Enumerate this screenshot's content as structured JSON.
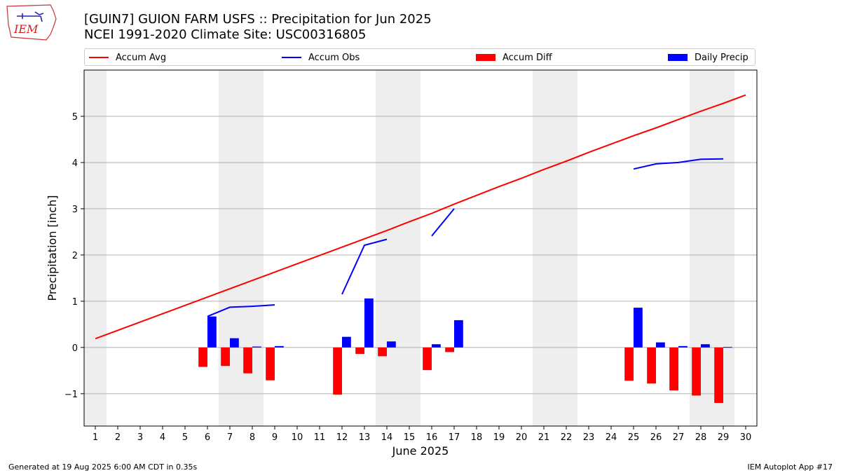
{
  "header": {
    "title_line1": "[GUIN7] GUION FARM USFS :: Precipitation for Jun 2025",
    "title_line2": "NCEI 1991-2020 Climate Site: USC00316805",
    "logo_text": "IEM"
  },
  "legend": {
    "accum_avg": "Accum Avg",
    "accum_obs": "Accum Obs",
    "accum_diff": "Accum Diff",
    "daily_precip": "Daily Precip"
  },
  "footer": {
    "generated": "Generated at 19 Aug 2025 6:00 AM CDT in 0.35s",
    "app": "IEM Autoplot App #17"
  },
  "colors": {
    "avg": "#ff0000",
    "obs": "#0000ff",
    "diff": "#ff0000",
    "daily": "#0000ff",
    "weekend": "#eeeeee",
    "grid": "#b0b0b0"
  },
  "chart_data": {
    "type": "bar",
    "xlabel": "June 2025",
    "ylabel": "Precipitation [inch]",
    "xlim": [
      0.5,
      30.5
    ],
    "ylim": [
      -1.7,
      6.0
    ],
    "x_ticks": [
      1,
      2,
      3,
      4,
      5,
      6,
      7,
      8,
      9,
      10,
      11,
      12,
      13,
      14,
      15,
      16,
      17,
      18,
      19,
      20,
      21,
      22,
      23,
      24,
      25,
      26,
      27,
      28,
      29,
      30
    ],
    "y_ticks": [
      -1,
      0,
      1,
      2,
      3,
      4,
      5
    ],
    "grid": "horizontal",
    "legend_placement": "top",
    "weekend_days": [
      1,
      7,
      8,
      14,
      15,
      21,
      22,
      28,
      29
    ],
    "accum_avg": {
      "name": "Accum Avg",
      "x": [
        1,
        2,
        3,
        4,
        5,
        6,
        7,
        8,
        9,
        10,
        11,
        12,
        13,
        14,
        15,
        16,
        17,
        18,
        19,
        20,
        21,
        22,
        23,
        24,
        25,
        26,
        27,
        28,
        29,
        30
      ],
      "values": [
        0.19,
        0.37,
        0.55,
        0.73,
        0.91,
        1.09,
        1.27,
        1.45,
        1.63,
        1.81,
        1.99,
        2.17,
        2.35,
        2.53,
        2.72,
        2.9,
        3.1,
        3.29,
        3.48,
        3.66,
        3.85,
        4.03,
        4.22,
        4.4,
        4.58,
        4.75,
        4.93,
        5.11,
        5.28,
        5.46
      ]
    },
    "accum_obs": {
      "name": "Accum Obs",
      "segments": [
        {
          "x": [
            6,
            7,
            8,
            9
          ],
          "values": [
            0.67,
            0.87,
            0.89,
            0.92
          ]
        },
        {
          "x": [
            12,
            13,
            14
          ],
          "values": [
            1.15,
            2.21,
            2.34
          ]
        },
        {
          "x": [
            16,
            17
          ],
          "values": [
            2.41,
            3.0
          ]
        },
        {
          "x": [
            25,
            26,
            27,
            28,
            29
          ],
          "values": [
            3.86,
            3.97,
            4.0,
            4.07,
            4.08
          ]
        }
      ]
    },
    "accum_diff": {
      "name": "Accum Diff",
      "x": [
        6,
        7,
        8,
        9,
        12,
        13,
        14,
        16,
        17,
        25,
        26,
        27,
        28,
        29
      ],
      "values": [
        -0.42,
        -0.4,
        -0.56,
        -0.71,
        -1.02,
        -0.14,
        -0.19,
        -0.49,
        -0.1,
        -0.72,
        -0.78,
        -0.93,
        -1.04,
        -1.2
      ]
    },
    "daily_precip": {
      "name": "Daily Precip",
      "x": [
        6,
        7,
        8,
        9,
        12,
        13,
        14,
        16,
        17,
        25,
        26,
        27,
        28,
        29
      ],
      "values": [
        0.67,
        0.2,
        0.02,
        0.03,
        0.23,
        1.06,
        0.13,
        0.07,
        0.59,
        0.86,
        0.11,
        0.03,
        0.07,
        0.01
      ]
    }
  }
}
